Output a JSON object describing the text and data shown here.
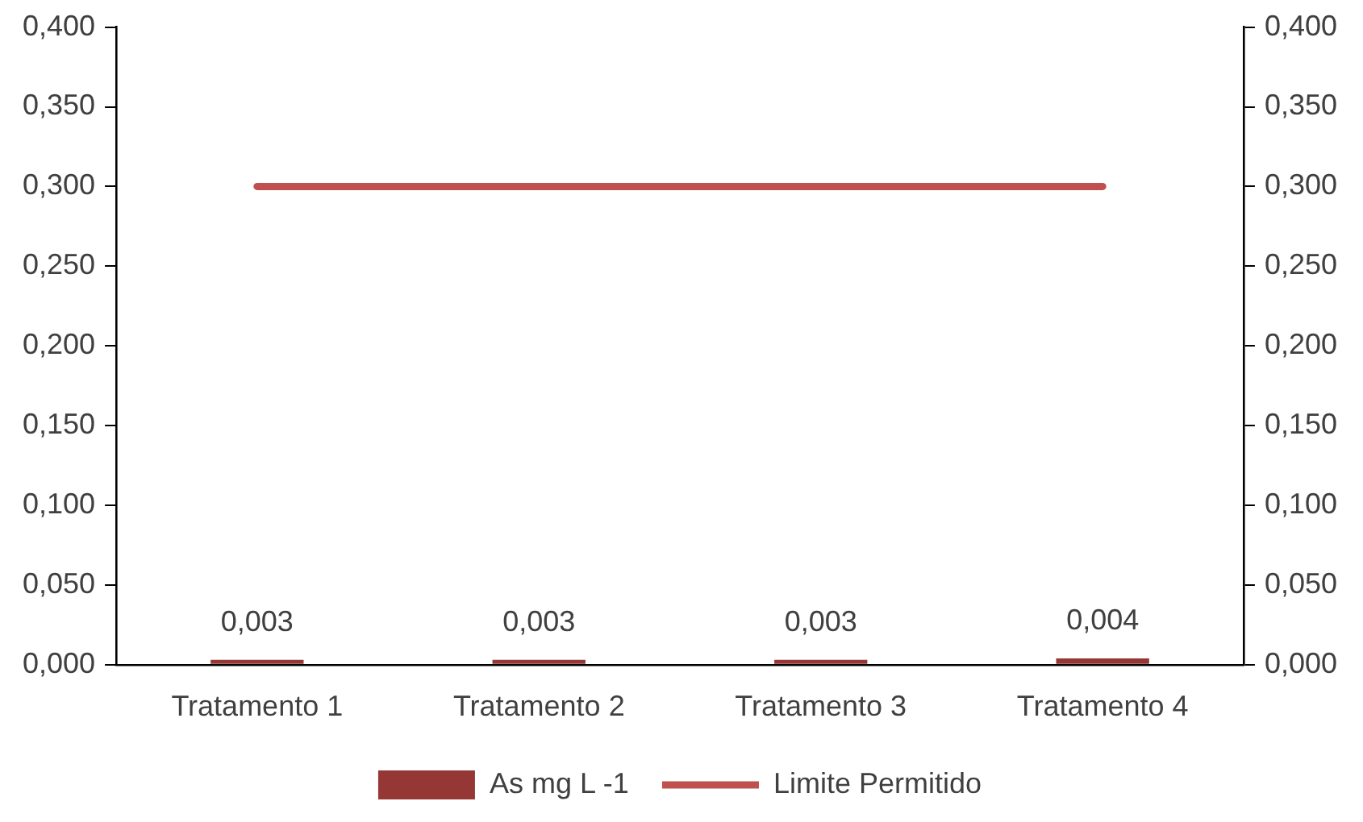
{
  "chart_data": {
    "type": "bar",
    "categories": [
      "Tratamento 1",
      "Tratamento 2",
      "Tratamento 3",
      "Tratamento 4"
    ],
    "series": [
      {
        "name": "As mg L -1",
        "color": "#953735",
        "values": [
          0.003,
          0.003,
          0.003,
          0.004
        ],
        "value_labels": [
          "0,003",
          "0,003",
          "0,003",
          "0,004"
        ]
      },
      {
        "name": "Limite Permitido",
        "type": "line",
        "axis": "y2",
        "color": "#c0504d",
        "values": [
          0.3,
          0.3,
          0.3,
          0.3
        ]
      }
    ],
    "ylim": [
      0,
      0.4
    ],
    "yticks": [
      {
        "value": 0,
        "label": "0,000"
      },
      {
        "value": 0.05,
        "label": "0,050"
      },
      {
        "value": 0.1,
        "label": "0,100"
      },
      {
        "value": 0.15,
        "label": "0,150"
      },
      {
        "value": 0.2,
        "label": "0,200"
      },
      {
        "value": 0.25,
        "label": "0,250"
      },
      {
        "value": 0.3,
        "label": "0,300"
      },
      {
        "value": 0.35,
        "label": "0,350"
      },
      {
        "value": 0.4,
        "label": "0,400"
      }
    ],
    "y2lim": [
      0,
      0.4
    ],
    "y2ticks": [
      {
        "value": 0,
        "label": "0,000"
      },
      {
        "value": 0.05,
        "label": "0,050"
      },
      {
        "value": 0.1,
        "label": "0,100"
      },
      {
        "value": 0.15,
        "label": "0,150"
      },
      {
        "value": 0.2,
        "label": "0,200"
      },
      {
        "value": 0.25,
        "label": "0,250"
      },
      {
        "value": 0.3,
        "label": "0,300"
      },
      {
        "value": 0.35,
        "label": "0,350"
      },
      {
        "value": 0.4,
        "label": "0,400"
      }
    ],
    "grid": false,
    "legend": "bottom",
    "marker": "none",
    "line_style": "solid"
  }
}
